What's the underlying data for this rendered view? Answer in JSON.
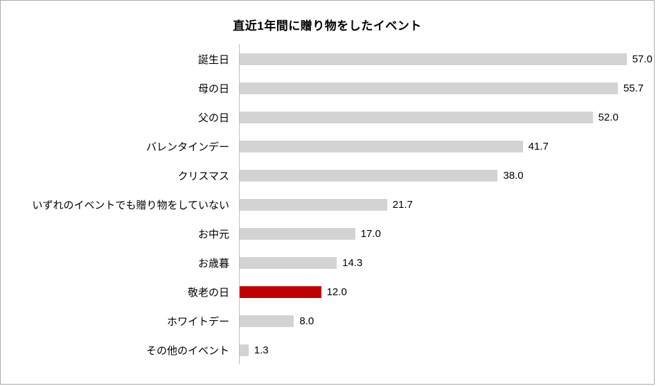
{
  "title": "直近1年間に贈り物をしたイベント",
  "chart_data": {
    "type": "bar",
    "orientation": "horizontal",
    "title": "直近1年間に贈り物をしたイベント",
    "categories": [
      "誕生日",
      "母の日",
      "父の日",
      "バレンタインデー",
      "クリスマス",
      "いずれのイベントでも贈り物をしていない",
      "お中元",
      "お歳暮",
      "敬老の日",
      "ホワイトデー",
      "その他のイベント"
    ],
    "values": [
      57.0,
      55.7,
      52.0,
      41.7,
      38.0,
      21.7,
      17.0,
      14.3,
      12.0,
      8.0,
      1.3
    ],
    "value_labels": [
      "57.0",
      "55.7",
      "52.0",
      "41.7",
      "38.0",
      "21.7",
      "17.0",
      "14.3",
      "12.0",
      "8.0",
      "1.3"
    ],
    "highlight_category": "敬老の日",
    "bar_color": "#d3d3d3",
    "highlight_color": "#c00000",
    "xlim": [
      0,
      60
    ],
    "grid": false,
    "legend": false
  }
}
